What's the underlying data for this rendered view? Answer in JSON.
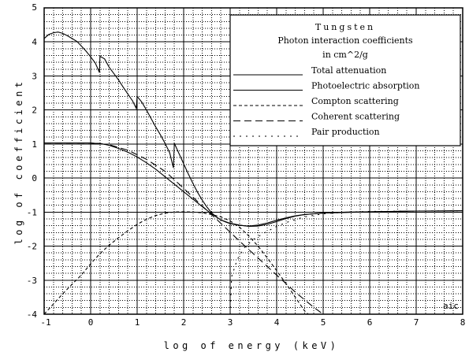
{
  "chart_data": {
    "type": "line",
    "xlabel": "log of energy (keV)",
    "ylabel": "log of coefficient",
    "xlim": [
      -1,
      8
    ],
    "ylim": [
      -4,
      5
    ],
    "x_ticks": [
      "-1",
      "0",
      "1",
      "2",
      "3",
      "4",
      "5",
      "6",
      "7",
      "8"
    ],
    "y_ticks": [
      "5",
      "4",
      "3",
      "2",
      "1",
      "0",
      "-1",
      "-2",
      "-3",
      "-4"
    ],
    "grid": true,
    "corner_label": "aic",
    "legend": {
      "placement": "top-right",
      "heading": "Tungsten",
      "title_line1": "Photon interaction coefficients",
      "title_line2": "in cm^2/g"
    },
    "series": [
      {
        "name": "Total attenuation",
        "dash": "none",
        "points": [
          [
            -1,
            4.1
          ],
          [
            -0.9,
            4.22
          ],
          [
            -0.8,
            4.27
          ],
          [
            -0.7,
            4.29
          ],
          [
            -0.6,
            4.25
          ],
          [
            -0.5,
            4.18
          ],
          [
            -0.4,
            4.1
          ],
          [
            -0.3,
            4.02
          ],
          [
            -0.2,
            3.88
          ],
          [
            -0.1,
            3.73
          ],
          [
            0.0,
            3.56
          ],
          [
            0.1,
            3.38
          ],
          [
            0.19,
            3.1
          ],
          [
            0.2,
            3.58
          ],
          [
            0.3,
            3.5
          ],
          [
            0.4,
            3.25
          ],
          [
            0.5,
            3.07
          ],
          [
            0.6,
            2.88
          ],
          [
            0.7,
            2.67
          ],
          [
            0.8,
            2.47
          ],
          [
            0.9,
            2.27
          ],
          [
            0.98,
            2.05
          ],
          [
            1.0,
            2.4
          ],
          [
            1.1,
            2.23
          ],
          [
            1.2,
            2.0
          ],
          [
            1.3,
            1.75
          ],
          [
            1.4,
            1.5
          ],
          [
            1.5,
            1.27
          ],
          [
            1.6,
            1.02
          ],
          [
            1.7,
            0.74
          ],
          [
            1.78,
            0.3
          ],
          [
            1.8,
            1.02
          ],
          [
            1.9,
            0.72
          ],
          [
            2.0,
            0.42
          ],
          [
            2.1,
            0.12
          ],
          [
            2.2,
            -0.16
          ],
          [
            2.3,
            -0.42
          ],
          [
            2.4,
            -0.65
          ],
          [
            2.5,
            -0.85
          ],
          [
            2.6,
            -1.02
          ],
          [
            2.7,
            -1.14
          ],
          [
            2.8,
            -1.23
          ],
          [
            2.9,
            -1.29
          ],
          [
            3.0,
            -1.34
          ],
          [
            3.2,
            -1.39
          ],
          [
            3.4,
            -1.41
          ],
          [
            3.6,
            -1.38
          ],
          [
            3.8,
            -1.32
          ],
          [
            4.0,
            -1.24
          ],
          [
            4.2,
            -1.17
          ],
          [
            4.4,
            -1.11
          ],
          [
            4.6,
            -1.07
          ],
          [
            4.8,
            -1.05
          ],
          [
            5.0,
            -1.03
          ],
          [
            5.5,
            -1.0
          ],
          [
            6.0,
            -0.99
          ],
          [
            6.5,
            -0.98
          ],
          [
            7.0,
            -0.97
          ],
          [
            7.5,
            -0.97
          ],
          [
            8.0,
            -0.96
          ]
        ]
      },
      {
        "name": "Photoelectric absorption",
        "dash": "none",
        "points": [
          [
            -1,
            1.03
          ],
          [
            -0.5,
            1.03
          ],
          [
            0.0,
            1.03
          ],
          [
            0.1,
            1.02
          ],
          [
            0.2,
            1.02
          ],
          [
            0.4,
            0.96
          ],
          [
            0.6,
            0.87
          ],
          [
            0.8,
            0.76
          ],
          [
            1.0,
            0.62
          ],
          [
            1.2,
            0.45
          ],
          [
            1.4,
            0.26
          ],
          [
            1.6,
            0.04
          ],
          [
            1.8,
            -0.18
          ],
          [
            2.0,
            -0.4
          ],
          [
            2.2,
            -0.62
          ],
          [
            2.4,
            -0.84
          ],
          [
            2.6,
            -1.05
          ],
          [
            2.8,
            -1.23
          ],
          [
            3.0,
            -1.33
          ],
          [
            3.2,
            -1.38
          ],
          [
            3.4,
            -1.42
          ],
          [
            3.6,
            -1.41
          ],
          [
            3.8,
            -1.36
          ],
          [
            4.0,
            -1.28
          ],
          [
            4.2,
            -1.19
          ],
          [
            4.4,
            -1.12
          ],
          [
            4.6,
            -1.07
          ],
          [
            4.8,
            -1.05
          ],
          [
            5.0,
            -1.03
          ],
          [
            5.5,
            -1.01
          ],
          [
            6.0,
            -0.99
          ],
          [
            7.0,
            -0.97
          ],
          [
            8.0,
            -0.96
          ]
        ]
      },
      {
        "name": "Compton scattering",
        "dash": "4,3",
        "points": [
          [
            -1,
            -4.0
          ],
          [
            -0.8,
            -3.7
          ],
          [
            -0.6,
            -3.4
          ],
          [
            -0.4,
            -3.12
          ],
          [
            -0.2,
            -2.85
          ],
          [
            0.0,
            -2.52
          ],
          [
            0.2,
            -2.22
          ],
          [
            0.4,
            -1.97
          ],
          [
            0.6,
            -1.75
          ],
          [
            0.8,
            -1.55
          ],
          [
            1.0,
            -1.36
          ],
          [
            1.2,
            -1.21
          ],
          [
            1.4,
            -1.1
          ],
          [
            1.6,
            -1.03
          ],
          [
            1.8,
            -1.0
          ],
          [
            2.0,
            -0.99
          ],
          [
            2.2,
            -1.0
          ],
          [
            2.4,
            -1.02
          ],
          [
            2.6,
            -1.07
          ],
          [
            2.8,
            -1.14
          ],
          [
            3.0,
            -1.26
          ],
          [
            3.2,
            -1.44
          ],
          [
            3.4,
            -1.7
          ],
          [
            3.6,
            -2.0
          ],
          [
            3.8,
            -2.35
          ],
          [
            4.0,
            -2.72
          ],
          [
            4.2,
            -3.1
          ],
          [
            4.4,
            -3.5
          ],
          [
            4.6,
            -3.9
          ],
          [
            4.68,
            -4.0
          ]
        ]
      },
      {
        "name": "Coherent scattering",
        "dash": "9,5",
        "points": [
          [
            -1,
            1.03
          ],
          [
            -0.5,
            1.03
          ],
          [
            0.0,
            1.03
          ],
          [
            0.4,
            0.98
          ],
          [
            0.8,
            0.82
          ],
          [
            1.2,
            0.55
          ],
          [
            1.6,
            0.2
          ],
          [
            2.0,
            -0.3
          ],
          [
            2.4,
            -0.82
          ],
          [
            2.8,
            -1.33
          ],
          [
            3.2,
            -1.85
          ],
          [
            3.6,
            -2.35
          ],
          [
            4.0,
            -2.85
          ],
          [
            4.4,
            -3.35
          ],
          [
            4.8,
            -3.8
          ],
          [
            5.0,
            -4.0
          ]
        ]
      },
      {
        "name": "Pair production",
        "dash": "2,6",
        "points": [
          [
            3.0,
            -4.0
          ],
          [
            3.03,
            -2.9
          ],
          [
            3.15,
            -2.4
          ],
          [
            3.3,
            -2.05
          ],
          [
            3.5,
            -1.8
          ],
          [
            3.75,
            -1.6
          ],
          [
            4.0,
            -1.42
          ],
          [
            4.3,
            -1.26
          ],
          [
            4.6,
            -1.14
          ],
          [
            5.0,
            -1.05
          ],
          [
            5.5,
            -1.0
          ],
          [
            6.0,
            -0.98
          ],
          [
            7.0,
            -0.97
          ],
          [
            8.0,
            -0.96
          ]
        ]
      }
    ]
  }
}
